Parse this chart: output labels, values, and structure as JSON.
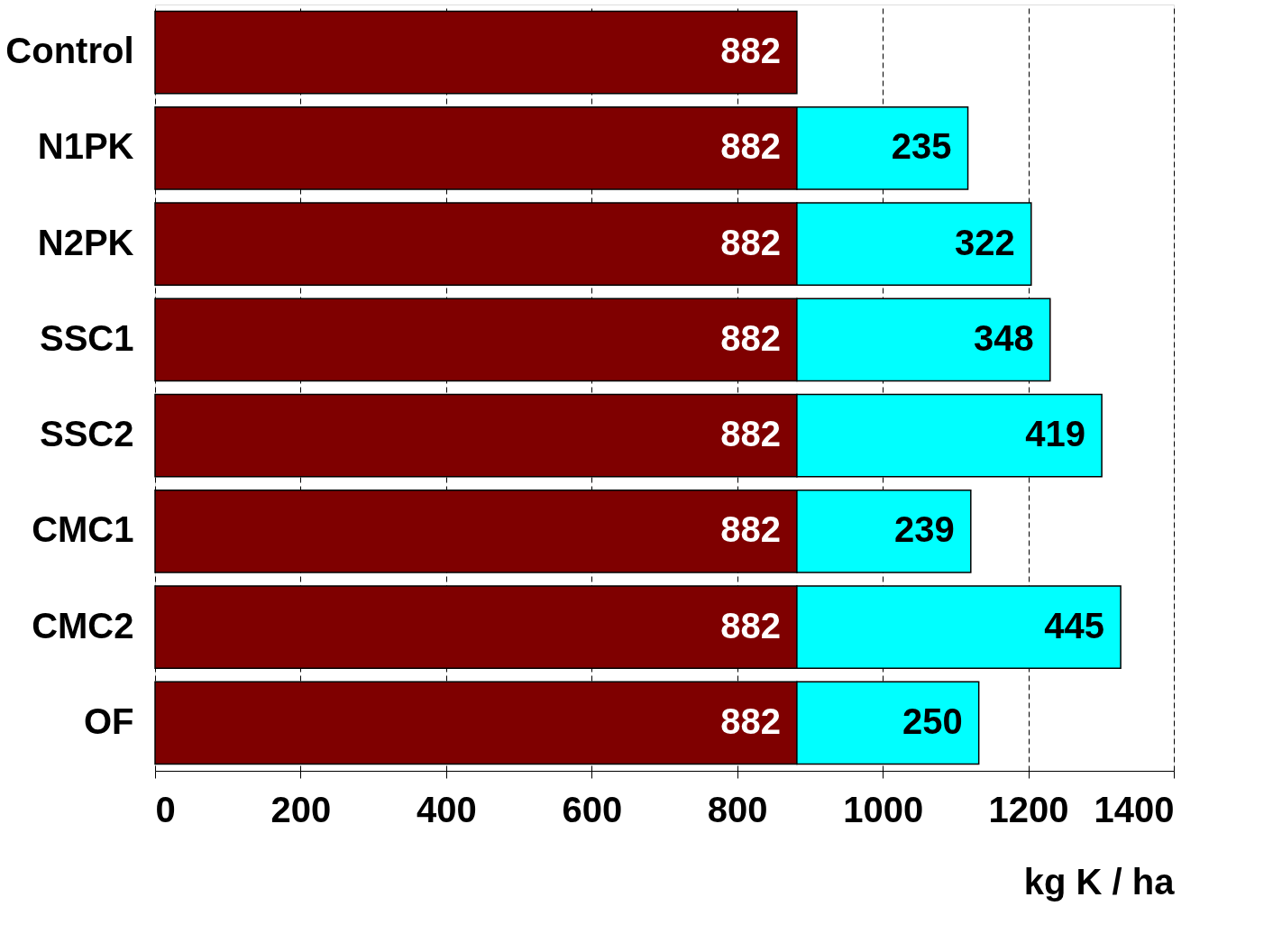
{
  "chart_data": {
    "type": "bar",
    "orientation": "horizontal",
    "stacked": true,
    "data_labels": true,
    "grid": "x",
    "xlabel": "kg K / ha",
    "categories": [
      "Control",
      "N1PK",
      "N2PK",
      "SSC1",
      "SSC2",
      "CMC1",
      "CMC2",
      "OF"
    ],
    "series": [
      {
        "color": "#7f0000",
        "values": [
          882,
          882,
          882,
          882,
          882,
          882,
          882,
          882
        ]
      },
      {
        "color": "#00ffff",
        "values": [
          null,
          235,
          322,
          348,
          419,
          239,
          445,
          250
        ]
      }
    ],
    "xlim": [
      0,
      1400
    ],
    "xticks": [
      0,
      200,
      400,
      600,
      800,
      1000,
      1200,
      1400
    ]
  }
}
